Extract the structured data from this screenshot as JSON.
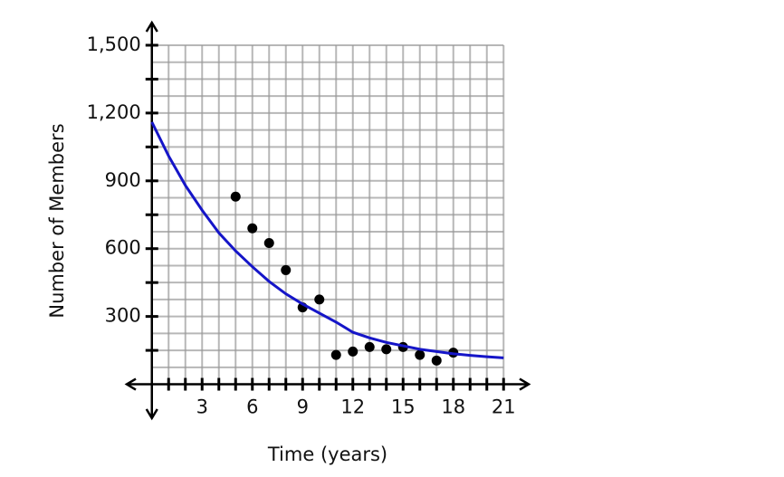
{
  "chart_data": {
    "type": "scatter",
    "x_label": "Time (years)",
    "y_label": "Number of Members",
    "xlim": [
      -1.5,
      22.5
    ],
    "ylim": [
      -150,
      1600
    ],
    "xticks": [
      3,
      6,
      9,
      12,
      15,
      18,
      21
    ],
    "xminorticks": [
      1,
      2,
      3,
      4,
      5,
      6,
      7,
      8,
      9,
      10,
      11,
      12,
      13,
      14,
      15,
      16,
      17,
      18,
      19,
      20,
      21
    ],
    "yticks": [
      {
        "value": 300,
        "label": "300"
      },
      {
        "value": 600,
        "label": "600"
      },
      {
        "value": 900,
        "label": "900"
      },
      {
        "value": 1200,
        "label": "1,200"
      },
      {
        "value": 1500,
        "label": "1,500"
      }
    ],
    "yminorticks": [
      150,
      450,
      750,
      1050,
      1350
    ],
    "ygrid": [
      75,
      150,
      225,
      300,
      375,
      450,
      525,
      600,
      675,
      750,
      825,
      900,
      975,
      1050,
      1125,
      1200,
      1275,
      1350,
      1425,
      1500
    ],
    "grid": true,
    "series": [
      {
        "kind": "points",
        "color": "#000000",
        "x": [
          5,
          6,
          7,
          8,
          9,
          10,
          11,
          12,
          13,
          14,
          15,
          16,
          17,
          18
        ],
        "values": [
          830,
          690,
          625,
          505,
          340,
          375,
          130,
          145,
          165,
          155,
          165,
          130,
          105,
          140
        ]
      },
      {
        "kind": "line",
        "color": "#1515c8",
        "x": [
          0,
          1,
          2,
          3,
          4,
          5,
          6,
          7,
          8,
          9,
          10,
          11,
          12,
          13,
          14,
          15,
          16,
          17,
          18,
          19,
          20,
          21
        ],
        "values": [
          1160,
          1010,
          880,
          770,
          670,
          590,
          520,
          455,
          400,
          355,
          315,
          275,
          230,
          205,
          185,
          170,
          155,
          145,
          135,
          128,
          122,
          117
        ]
      }
    ]
  }
}
